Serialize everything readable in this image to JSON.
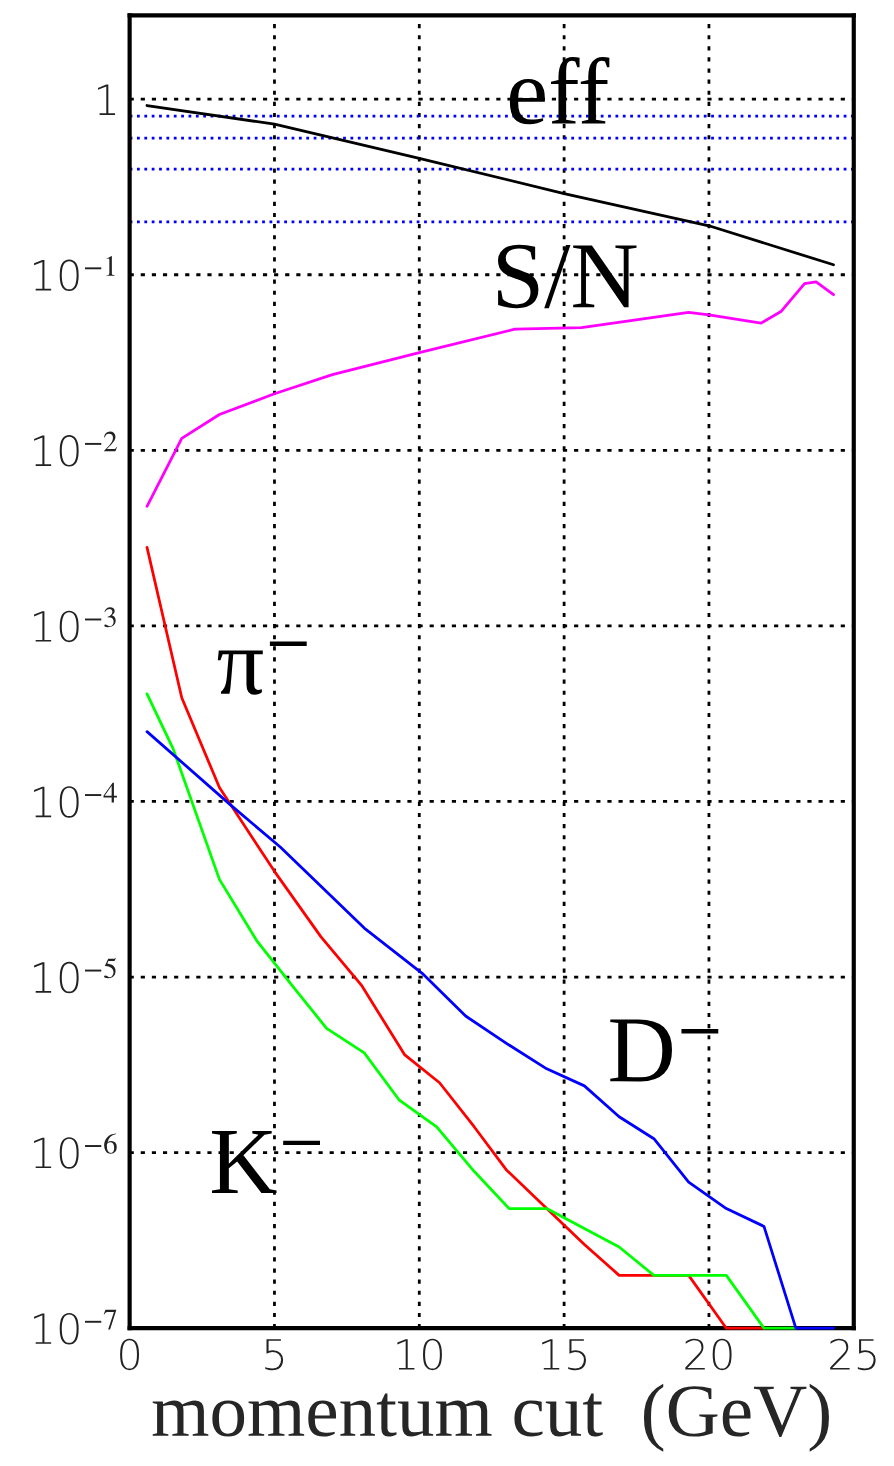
{
  "chart_data": {
    "type": "line",
    "xlabel": "momentum cut  (GeV)",
    "log": "y",
    "grid": true,
    "legend": false,
    "line_style": "solid",
    "marker": "none",
    "xlim": [
      0,
      25
    ],
    "xticks": [
      0,
      5,
      10,
      15,
      20,
      25
    ],
    "ylim": [
      1e-07,
      3
    ],
    "yticks": [
      {
        "value": 1e-07,
        "label": "10$^{−7}$"
      },
      {
        "value": 1e-06,
        "label": "10$^{−6}$"
      },
      {
        "value": 1e-05,
        "label": "10$^{−5}$"
      },
      {
        "value": 0.0001,
        "label": "10$^{−4}$"
      },
      {
        "value": 0.001,
        "label": "10$^{−3}$"
      },
      {
        "value": 0.01,
        "label": "10$^{−2}$"
      },
      {
        "value": 0.1,
        "label": "10$^{−1}$"
      },
      {
        "value": 1,
        "label": "1"
      }
    ],
    "ref_lines": [
      {
        "axis": "y",
        "value": 0.8,
        "label": null,
        "color": "#0000ff",
        "line_style": "dotted"
      },
      {
        "axis": "y",
        "value": 0.6,
        "label": null,
        "color": "#0000ff",
        "line_style": "dotted"
      },
      {
        "axis": "y",
        "value": 0.4,
        "label": null,
        "color": "#0000ff",
        "line_style": "dotted"
      },
      {
        "axis": "y",
        "value": 0.2,
        "label": null,
        "color": "#0000ff",
        "line_style": "dotted"
      }
    ],
    "series": [
      {
        "name": "eff",
        "color": "#000000",
        "x": [
          0.6,
          5,
          10,
          15,
          20,
          24.3
        ],
        "values": [
          0.92,
          0.72,
          0.46,
          0.29,
          0.19,
          0.114
        ]
      },
      {
        "name": "S/N",
        "color": "#ff00ff",
        "x": [
          0.6,
          1.8,
          3.1,
          5.0,
          7.0,
          10.0,
          13.3,
          15.6,
          19.3,
          20.0,
          21.8,
          22.5,
          23.3,
          23.7,
          24.3
        ],
        "values": [
          0.0048,
          0.0117,
          0.016,
          0.021,
          0.027,
          0.036,
          0.049,
          0.05,
          0.061,
          0.059,
          0.053,
          0.062,
          0.089,
          0.091,
          0.077
        ]
      },
      {
        "name": "π$^{−}$",
        "color": "#ff0000",
        "x": [
          0.6,
          1.8,
          3.1,
          5.0,
          6.6,
          8.0,
          9.5,
          10.7,
          11.9,
          13.0,
          14.4,
          15.7,
          16.9,
          19.3,
          20.6,
          21.9
        ],
        "values": [
          0.0028,
          0.00039,
          0.00012,
          4e-05,
          1.7e-05,
          9e-06,
          3.6e-06,
          2.5e-06,
          1.4e-06,
          8e-07,
          4.8e-07,
          3e-07,
          2e-07,
          2e-07,
          1e-07,
          1e-07
        ]
      },
      {
        "name": "K$^{−}$",
        "color": "#00ff00",
        "x": [
          0.6,
          1.5,
          3.1,
          4.4,
          5.6,
          6.8,
          8.1,
          9.3,
          10.6,
          11.9,
          13.1,
          14.4,
          16.9,
          18.1,
          20.6,
          21.9,
          23.0
        ],
        "values": [
          0.00041,
          0.0002,
          3.6e-05,
          1.6e-05,
          9e-06,
          5.1e-06,
          3.7e-06,
          2e-06,
          1.4e-06,
          7.8e-07,
          4.8e-07,
          4.8e-07,
          2.9e-07,
          2e-07,
          2e-07,
          1e-07,
          1e-07
        ]
      },
      {
        "name": "D$^{−}$",
        "color": "#0000ff",
        "x": [
          0.6,
          3.5,
          5.2,
          8.1,
          10.1,
          11.6,
          13.1,
          14.4,
          15.7,
          16.9,
          18.1,
          19.3,
          20.6,
          21.9,
          23.0,
          24.3
        ],
        "values": [
          0.00025,
          9.5e-05,
          5.5e-05,
          1.9e-05,
          1.05e-05,
          6e-06,
          4.1e-06,
          3e-06,
          2.4e-06,
          1.6e-06,
          1.2e-06,
          6.8e-07,
          4.8e-07,
          3.8e-07,
          1e-07,
          1e-07
        ]
      }
    ]
  }
}
